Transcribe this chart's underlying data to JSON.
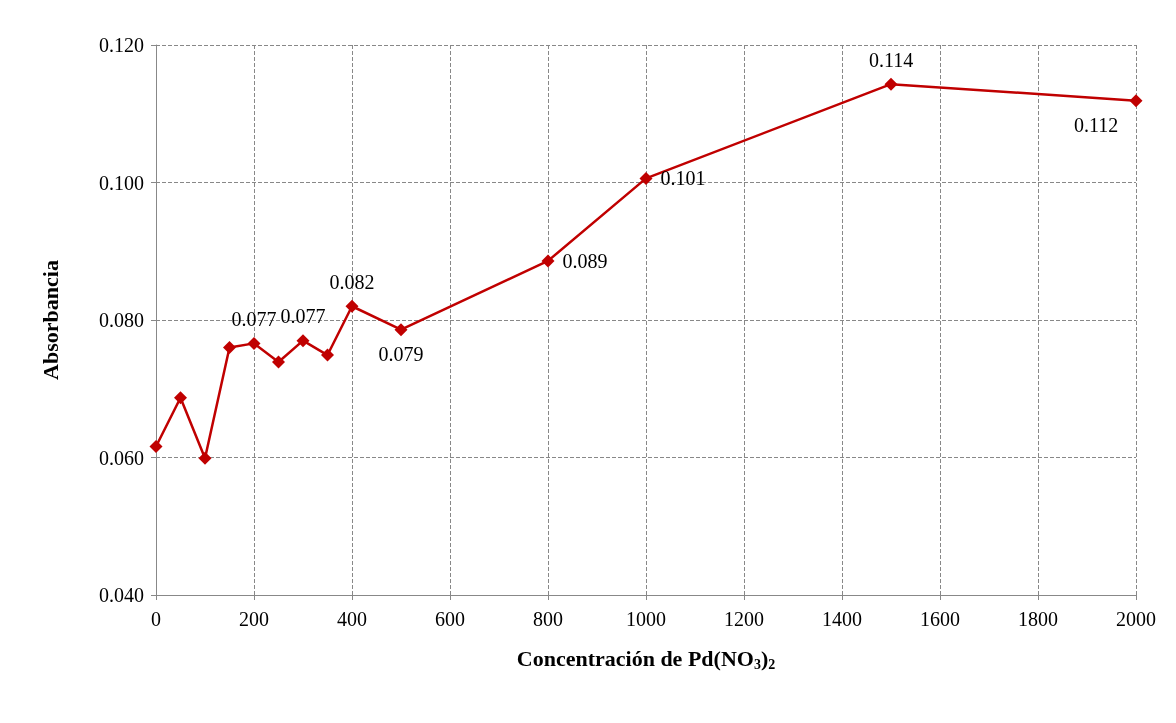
{
  "chart_data": {
    "type": "line",
    "xlabel": "Concentración de Pd(NO$_{3}$)$_{2}$",
    "ylabel": "Absorbancia",
    "x": [
      0,
      50,
      100,
      150,
      200,
      250,
      300,
      350,
      400,
      500,
      800,
      1000,
      1500,
      2000
    ],
    "series": [
      {
        "color": "#c00000",
        "values": [
          0.0616,
          0.0687,
          0.0599,
          0.076,
          0.0766,
          0.0739,
          0.077,
          0.0749,
          0.082,
          0.0786,
          0.0886,
          0.1006,
          0.1143,
          0.1119
        ],
        "value_labels": [
          null,
          null,
          null,
          null,
          "0.077",
          null,
          "0.077",
          null,
          "0.082",
          "0.079",
          "0.089",
          "0.101",
          "0.114",
          "0.112"
        ]
      }
    ],
    "xlim": [
      0,
      2000
    ],
    "xticks": [
      0,
      200,
      400,
      600,
      800,
      1000,
      1200,
      1400,
      1600,
      1800,
      2000
    ],
    "ylim": [
      0.04,
      0.12
    ],
    "yticks": [
      {
        "value": 0.04,
        "label": "0.040"
      },
      {
        "value": 0.06,
        "label": "0.060"
      },
      {
        "value": 0.08,
        "label": "0.080"
      },
      {
        "value": 0.1,
        "label": "0.100"
      },
      {
        "value": 0.12,
        "label": "0.120"
      }
    ],
    "grid": true,
    "marker": "diamond",
    "line_style": "solid"
  }
}
